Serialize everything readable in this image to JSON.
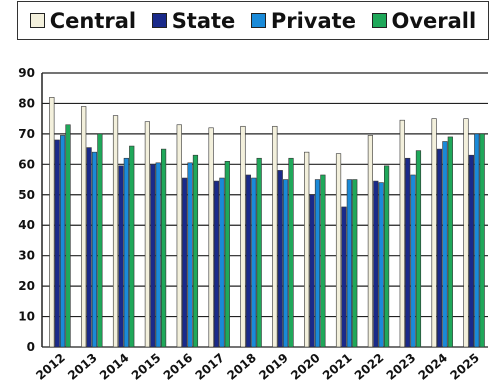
{
  "chart_data": {
    "type": "bar",
    "title": "",
    "xlabel": "",
    "ylabel": "",
    "ylim": [
      0,
      90
    ],
    "yticks": [
      0,
      10,
      20,
      30,
      40,
      50,
      60,
      70,
      80,
      90
    ],
    "grid": "horizontal",
    "legend_position": "top",
    "categories": [
      "2012",
      "2013",
      "2014",
      "2015",
      "2016",
      "2017",
      "2018",
      "2019",
      "2020",
      "2021",
      "2022",
      "2023",
      "2024",
      "2025"
    ],
    "series": [
      {
        "name": "Central",
        "color": "#f3f0dc",
        "values": [
          82,
          79,
          76,
          74,
          73,
          72,
          72.5,
          72.5,
          64,
          63.5,
          69.5,
          74.5,
          75,
          75
        ]
      },
      {
        "name": "State",
        "color": "#1a2a8a",
        "values": [
          68,
          65.5,
          59.5,
          60,
          55.5,
          54.5,
          56.5,
          58,
          50,
          46,
          54.5,
          62,
          65,
          63
        ]
      },
      {
        "name": "Private",
        "color": "#1a8ad8",
        "values": [
          69.5,
          64,
          62,
          60.5,
          60.5,
          55.5,
          55.5,
          55,
          55,
          55,
          54,
          56.5,
          67.5,
          70
        ]
      },
      {
        "name": "Overall",
        "color": "#1fa85a",
        "values": [
          73,
          70,
          66,
          65,
          63,
          61,
          62,
          62,
          56.5,
          55,
          59.5,
          64.5,
          69,
          70
        ]
      }
    ]
  }
}
